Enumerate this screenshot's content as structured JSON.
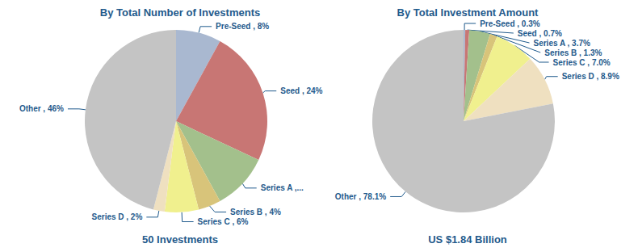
{
  "chart_data": [
    {
      "type": "pie",
      "title": "By Total Number of Investments",
      "subtitle": "50 Investments",
      "categories": [
        "Pre-Seed",
        "Seed",
        "Series A",
        "Series B",
        "Series C",
        "Series D",
        "Other"
      ],
      "values": [
        8,
        24,
        10,
        4,
        6,
        2,
        46
      ],
      "value_labels": [
        "Pre-Seed , 8%",
        "Seed , 24%",
        "Series A ,...",
        "Series B , 4%",
        "Series C , 6%",
        "Series D , 2%",
        "Other , 46%"
      ],
      "colors": [
        "#a9b8d0",
        "#c87674",
        "#a3c08c",
        "#d8c47a",
        "#f0f08e",
        "#efe0c0",
        "#c4c4c4"
      ],
      "data_labels": true
    },
    {
      "type": "pie",
      "title": "By Total Investment Amount",
      "subtitle": "US $1.84 Billion",
      "categories": [
        "Pre-Seed",
        "Seed",
        "Series A",
        "Series B",
        "Series C",
        "Series D",
        "Other"
      ],
      "values": [
        0.3,
        0.7,
        3.7,
        1.3,
        7.0,
        8.9,
        78.1
      ],
      "value_labels": [
        "Pre-Seed , 0.3%",
        "Seed , 0.7%",
        "Series A , 3.7%",
        "Series B , 1.3%",
        "Series C , 7.0%",
        "Series D , 8.9%",
        "Other , 78.1%"
      ],
      "colors": [
        "#a9b8d0",
        "#c87674",
        "#a3c08c",
        "#d8c47a",
        "#f0f08e",
        "#efe0c0",
        "#c4c4c4"
      ],
      "data_labels": true
    }
  ]
}
